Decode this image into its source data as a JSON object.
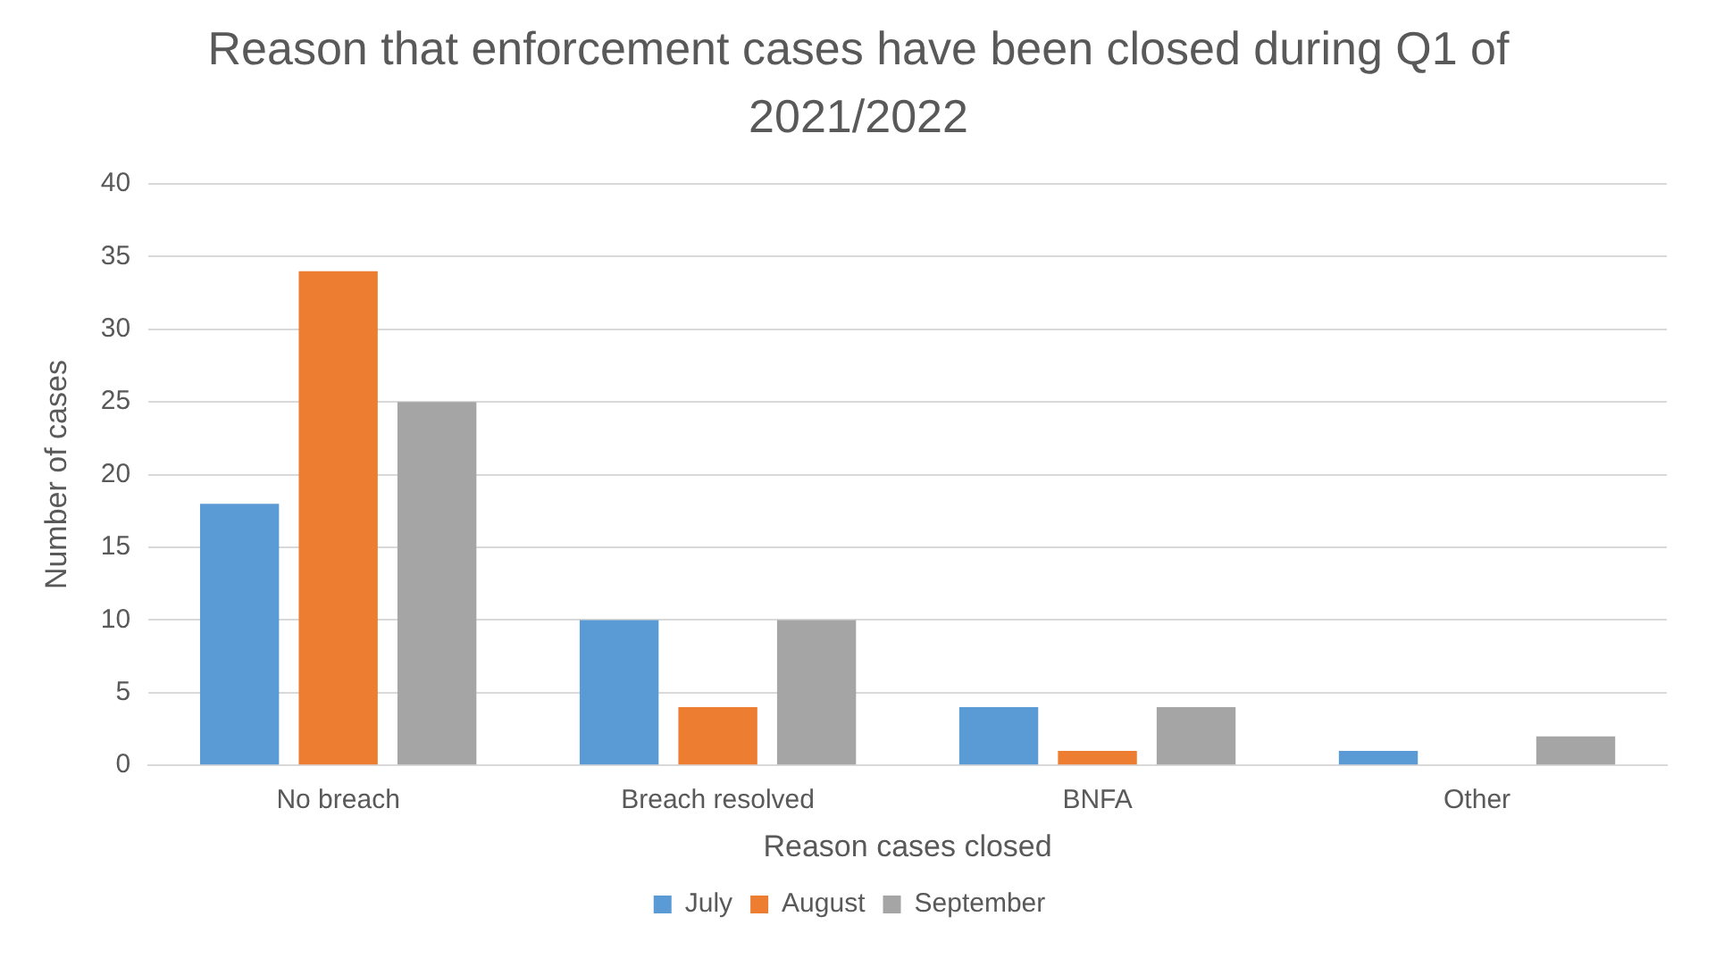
{
  "chart_data": {
    "type": "bar",
    "title": "Reason that enforcement cases have been closed during Q1 of 2021/2022",
    "xlabel": "Reason cases closed",
    "ylabel": "Number of cases",
    "categories": [
      "No breach",
      "Breach resolved",
      "BNFA",
      "Other"
    ],
    "series": [
      {
        "name": "July",
        "color": "#5b9bd5",
        "values": [
          18,
          10,
          4,
          1
        ]
      },
      {
        "name": "August",
        "color": "#ed7d31",
        "values": [
          34,
          4,
          1,
          0
        ]
      },
      {
        "name": "September",
        "color": "#a5a5a5",
        "values": [
          25,
          10,
          4,
          2
        ]
      }
    ],
    "ylim": [
      0,
      40
    ],
    "yticks": [
      0,
      5,
      10,
      15,
      20,
      25,
      30,
      35,
      40
    ],
    "grid": "y",
    "legend": "bottom"
  }
}
